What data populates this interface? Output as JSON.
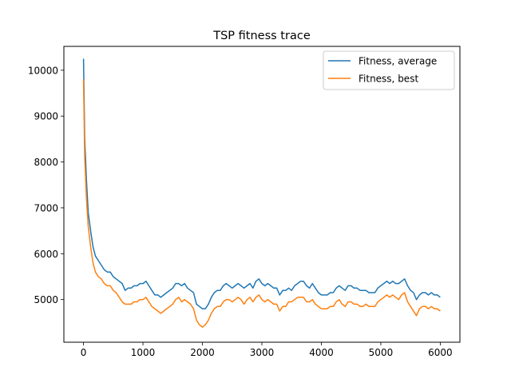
{
  "chart_data": {
    "type": "line",
    "title": "TSP fitness trace",
    "xlabel": "",
    "ylabel": "",
    "xlim": [
      -330,
      6330
    ],
    "ylim": [
      4070,
      10520
    ],
    "xticks": [
      0,
      1000,
      2000,
      3000,
      4000,
      5000,
      6000
    ],
    "xtick_labels": [
      "0",
      "1000",
      "2000",
      "3000",
      "4000",
      "5000",
      "6000"
    ],
    "yticks": [
      5000,
      6000,
      7000,
      8000,
      9000,
      10000
    ],
    "ytick_labels": [
      "5000",
      "6000",
      "7000",
      "8000",
      "9000",
      "10000"
    ],
    "grid": false,
    "legend_position": "upper right",
    "series": [
      {
        "name": "Fitness, average",
        "color": "#1f77b4",
        "x": [
          0,
          20,
          50,
          80,
          120,
          160,
          200,
          250,
          300,
          350,
          400,
          450,
          500,
          550,
          600,
          650,
          700,
          750,
          800,
          850,
          900,
          950,
          1000,
          1050,
          1100,
          1150,
          1200,
          1250,
          1300,
          1350,
          1400,
          1450,
          1500,
          1550,
          1600,
          1650,
          1700,
          1750,
          1800,
          1850,
          1900,
          1950,
          2000,
          2050,
          2100,
          2150,
          2200,
          2250,
          2300,
          2350,
          2400,
          2450,
          2500,
          2550,
          2600,
          2650,
          2700,
          2750,
          2800,
          2850,
          2900,
          2950,
          3000,
          3050,
          3100,
          3150,
          3200,
          3250,
          3300,
          3350,
          3400,
          3450,
          3500,
          3550,
          3600,
          3650,
          3700,
          3750,
          3800,
          3850,
          3900,
          3950,
          4000,
          4050,
          4100,
          4150,
          4200,
          4250,
          4300,
          4350,
          4400,
          4450,
          4500,
          4550,
          4600,
          4650,
          4700,
          4750,
          4800,
          4850,
          4900,
          4950,
          5000,
          5050,
          5100,
          5150,
          5200,
          5250,
          5300,
          5350,
          5400,
          5450,
          5500,
          5550,
          5600,
          5650,
          5700,
          5750,
          5800,
          5850,
          5900,
          5950,
          6000
        ],
        "y": [
          10250,
          8500,
          7600,
          6900,
          6500,
          6150,
          5950,
          5850,
          5750,
          5650,
          5600,
          5600,
          5500,
          5450,
          5400,
          5350,
          5200,
          5250,
          5250,
          5300,
          5300,
          5350,
          5350,
          5400,
          5300,
          5200,
          5100,
          5100,
          5050,
          5100,
          5150,
          5200,
          5250,
          5350,
          5350,
          5300,
          5350,
          5250,
          5200,
          5150,
          4900,
          4850,
          4800,
          4800,
          4900,
          5050,
          5150,
          5200,
          5200,
          5300,
          5350,
          5300,
          5250,
          5300,
          5350,
          5300,
          5250,
          5300,
          5350,
          5250,
          5400,
          5450,
          5350,
          5300,
          5350,
          5300,
          5250,
          5250,
          5100,
          5200,
          5200,
          5250,
          5200,
          5300,
          5350,
          5400,
          5400,
          5300,
          5250,
          5350,
          5250,
          5150,
          5100,
          5100,
          5100,
          5150,
          5150,
          5250,
          5300,
          5250,
          5200,
          5300,
          5300,
          5250,
          5250,
          5200,
          5200,
          5200,
          5150,
          5150,
          5150,
          5250,
          5300,
          5350,
          5400,
          5350,
          5400,
          5350,
          5350,
          5400,
          5450,
          5300,
          5200,
          5150,
          5000,
          5100,
          5150,
          5150,
          5100,
          5150,
          5100,
          5100,
          5050
        ]
      },
      {
        "name": "Fitness, best",
        "color": "#ff7f0e",
        "x": [
          0,
          20,
          50,
          80,
          120,
          160,
          200,
          250,
          300,
          350,
          400,
          450,
          500,
          550,
          600,
          650,
          700,
          750,
          800,
          850,
          900,
          950,
          1000,
          1050,
          1100,
          1150,
          1200,
          1250,
          1300,
          1350,
          1400,
          1450,
          1500,
          1550,
          1600,
          1650,
          1700,
          1750,
          1800,
          1850,
          1900,
          1950,
          2000,
          2050,
          2100,
          2150,
          2200,
          2250,
          2300,
          2350,
          2400,
          2450,
          2500,
          2550,
          2600,
          2650,
          2700,
          2750,
          2800,
          2850,
          2900,
          2950,
          3000,
          3050,
          3100,
          3150,
          3200,
          3250,
          3300,
          3350,
          3400,
          3450,
          3500,
          3550,
          3600,
          3650,
          3700,
          3750,
          3800,
          3850,
          3900,
          3950,
          4000,
          4050,
          4100,
          4150,
          4200,
          4250,
          4300,
          4350,
          4400,
          4450,
          4500,
          4550,
          4600,
          4650,
          4700,
          4750,
          4800,
          4850,
          4900,
          4950,
          5000,
          5050,
          5100,
          5150,
          5200,
          5250,
          5300,
          5350,
          5400,
          5450,
          5500,
          5550,
          5600,
          5650,
          5700,
          5750,
          5800,
          5850,
          5900,
          5950,
          6000
        ],
        "y": [
          9800,
          8100,
          7200,
          6600,
          6150,
          5800,
          5600,
          5500,
          5450,
          5350,
          5300,
          5300,
          5200,
          5150,
          5050,
          4950,
          4900,
          4900,
          4900,
          4950,
          4950,
          5000,
          5000,
          5050,
          4950,
          4850,
          4800,
          4750,
          4700,
          4750,
          4800,
          4850,
          4900,
          5000,
          5050,
          4950,
          5000,
          4950,
          4900,
          4800,
          4550,
          4450,
          4400,
          4450,
          4550,
          4700,
          4800,
          4850,
          4850,
          4950,
          5000,
          5000,
          4950,
          5000,
          5050,
          5000,
          4900,
          5000,
          5050,
          4950,
          5050,
          5100,
          5000,
          4950,
          5000,
          4950,
          4900,
          4900,
          4750,
          4850,
          4850,
          4950,
          4950,
          5000,
          5050,
          5050,
          5050,
          4950,
          4950,
          5000,
          4900,
          4850,
          4800,
          4800,
          4800,
          4850,
          4850,
          4950,
          5000,
          4900,
          4850,
          4950,
          4950,
          4900,
          4900,
          4850,
          4850,
          4900,
          4850,
          4850,
          4850,
          4950,
          5000,
          5050,
          5100,
          5050,
          5100,
          5050,
          5000,
          5100,
          5150,
          4950,
          4850,
          4750,
          4650,
          4800,
          4850,
          4850,
          4800,
          4850,
          4800,
          4800,
          4750
        ]
      }
    ]
  }
}
